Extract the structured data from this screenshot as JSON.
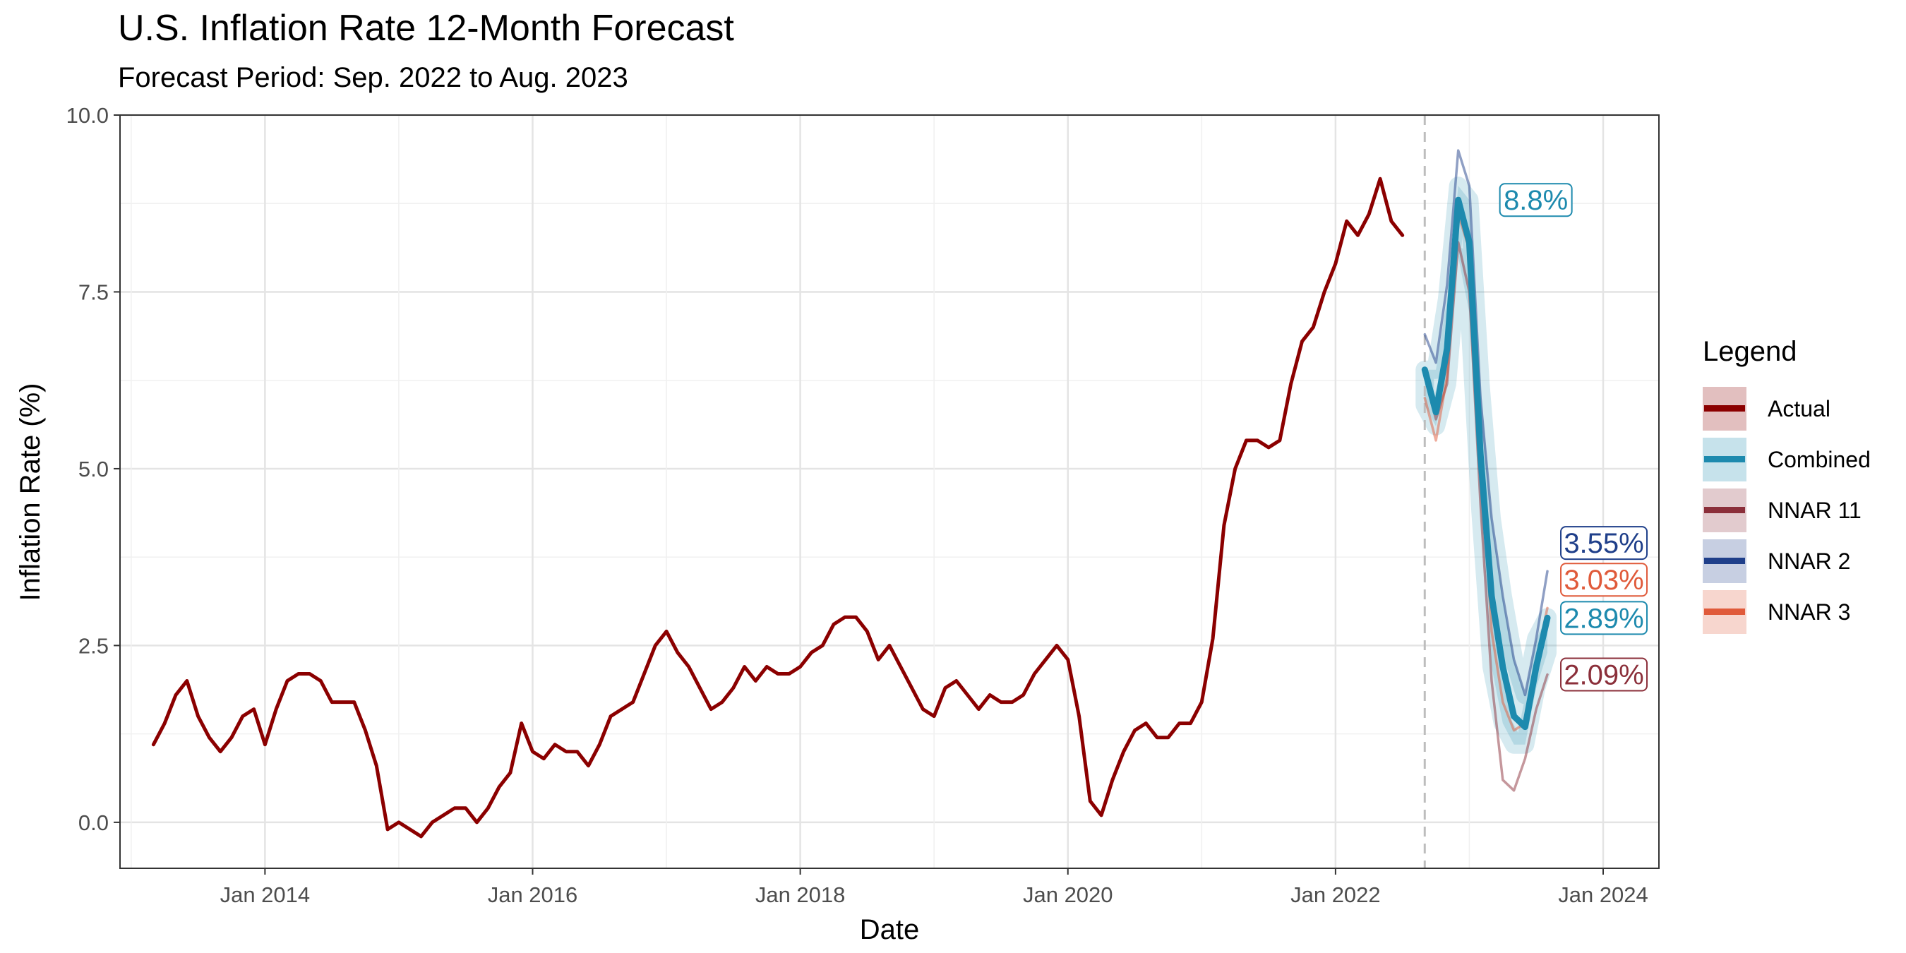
{
  "chart_data": {
    "type": "line",
    "title": "U.S. Inflation Rate 12-Month Forecast",
    "subtitle": "Forecast Period: Sep. 2022 to Aug. 2023",
    "xlabel": "Date",
    "ylabel": "Inflation Rate (%)",
    "xlim": [
      "2012-12-01",
      "2024-06-01"
    ],
    "ylim": [
      -0.65,
      10
    ],
    "x_ticks": [
      "2014-01-01",
      "2016-01-01",
      "2018-01-01",
      "2020-01-01",
      "2022-01-01",
      "2024-01-01"
    ],
    "x_tick_labels": [
      "Jan 2014",
      "Jan 2016",
      "Jan 2018",
      "Jan 2020",
      "Jan 2022",
      "Jan 2024"
    ],
    "y_ticks": [
      0,
      2.5,
      5,
      7.5,
      10
    ],
    "y_tick_labels": [
      "0.0",
      "2.5",
      "5.0",
      "7.5",
      "10.0"
    ],
    "grid": true,
    "forecast_start_line": "2022-09-01",
    "legend_title": "Legend",
    "legend_position": "right",
    "series": [
      {
        "name": "Actual",
        "color": "#8B0000",
        "start": "2013-03-01",
        "values": [
          1.1,
          1.4,
          1.8,
          2.0,
          1.5,
          1.2,
          1.0,
          1.2,
          1.5,
          1.6,
          1.1,
          1.6,
          2.0,
          2.1,
          2.1,
          2.0,
          1.7,
          1.7,
          1.7,
          1.3,
          0.8,
          -0.1,
          0.0,
          -0.1,
          -0.2,
          0.0,
          0.1,
          0.2,
          0.2,
          0.0,
          0.2,
          0.5,
          0.7,
          1.4,
          1.0,
          0.9,
          1.1,
          1.0,
          1.0,
          0.8,
          1.1,
          1.5,
          1.6,
          1.7,
          2.1,
          2.5,
          2.7,
          2.4,
          2.2,
          1.9,
          1.6,
          1.7,
          1.9,
          2.2,
          2.0,
          2.2,
          2.1,
          2.1,
          2.2,
          2.4,
          2.5,
          2.8,
          2.9,
          2.9,
          2.7,
          2.3,
          2.5,
          2.2,
          1.9,
          1.6,
          1.5,
          1.9,
          2.0,
          1.8,
          1.6,
          1.8,
          1.7,
          1.7,
          1.8,
          2.1,
          2.3,
          2.5,
          2.3,
          1.5,
          0.3,
          0.1,
          0.6,
          1.0,
          1.3,
          1.4,
          1.2,
          1.2,
          1.4,
          1.4,
          1.7,
          2.6,
          4.2,
          5.0,
          5.4,
          5.4,
          5.3,
          5.4,
          6.2,
          6.8,
          7.0,
          7.5,
          7.9,
          8.5,
          8.3,
          8.6,
          9.1,
          8.5,
          8.3
        ]
      },
      {
        "name": "NNAR 11",
        "color": "#8B2F3A",
        "start": "2022-09-01",
        "values": [
          6.3,
          5.7,
          6.2,
          8.2,
          7.5,
          4.5,
          2.0,
          0.6,
          0.45,
          0.9,
          1.6,
          2.09
        ]
      },
      {
        "name": "NNAR 2",
        "color": "#1F3F8A",
        "start": "2022-09-01",
        "values": [
          6.9,
          6.5,
          7.6,
          9.5,
          9.0,
          6.0,
          4.3,
          3.2,
          2.3,
          1.8,
          2.6,
          3.55
        ]
      },
      {
        "name": "NNAR 3",
        "color": "#E05A3A",
        "start": "2022-09-01",
        "values": [
          6.0,
          5.4,
          6.3,
          8.6,
          8.1,
          5.2,
          2.7,
          1.7,
          1.3,
          1.4,
          2.3,
          3.03
        ]
      },
      {
        "name": "Combined",
        "color": "#1D8AAE",
        "start": "2022-09-01",
        "values": [
          6.4,
          5.8,
          6.7,
          8.8,
          8.2,
          5.2,
          3.2,
          2.2,
          1.5,
          1.35,
          2.2,
          2.89
        ],
        "band_lower": [
          5.9,
          5.6,
          6.2,
          8.0,
          7.2,
          4.4,
          2.2,
          1.4,
          1.1,
          1.1,
          1.9,
          2.4
        ],
        "band_upper": [
          6.4,
          6.4,
          7.4,
          9.0,
          8.8,
          6.2,
          4.3,
          3.2,
          2.3,
          1.8,
          2.6,
          2.9
        ]
      }
    ],
    "annotations": [
      {
        "text": "8.8%",
        "x": "2022-12-01",
        "y": 8.8,
        "color": "#1D8AAE"
      },
      {
        "text": "3.55%",
        "x": "2023-08-01",
        "y": 3.55,
        "color": "#1F3F8A"
      },
      {
        "text": "3.03%",
        "x": "2023-08-01",
        "y": 3.03,
        "color": "#E05A3A"
      },
      {
        "text": "2.89%",
        "x": "2023-08-01",
        "y": 2.89,
        "color": "#1D8AAE"
      },
      {
        "text": "2.09%",
        "x": "2023-08-01",
        "y": 2.09,
        "color": "#8B2F3A"
      }
    ],
    "legend": [
      {
        "label": "Actual",
        "color": "#8B0000"
      },
      {
        "label": "Combined",
        "color": "#1D8AAE"
      },
      {
        "label": "NNAR 11",
        "color": "#8B2F3A"
      },
      {
        "label": "NNAR 2",
        "color": "#1F3F8A"
      },
      {
        "label": "NNAR 3",
        "color": "#E05A3A"
      }
    ]
  }
}
